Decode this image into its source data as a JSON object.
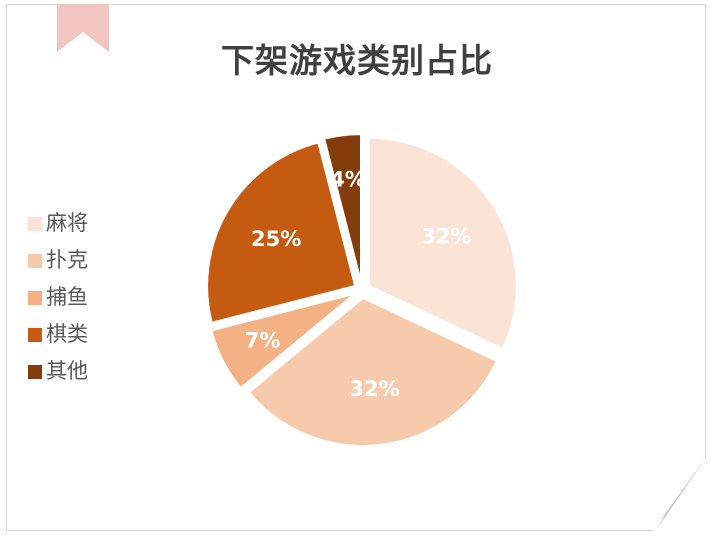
{
  "chart_data": {
    "type": "pie",
    "title": "下架游戏类别占比",
    "categories": [
      "麻将",
      "扑克",
      "捕鱼",
      "棋类",
      "其他"
    ],
    "values": [
      32,
      32,
      7,
      25,
      4
    ],
    "labels": [
      "32%",
      "32%",
      "7%",
      "25%",
      "4%"
    ],
    "colors": [
      "#FBE4D5",
      "#F7CAAC",
      "#F4B183",
      "#C55A11",
      "#843C0C"
    ],
    "legend_position": "left",
    "exploded": true
  },
  "legend": {
    "items": [
      {
        "label": "麻将",
        "color": "#FBE4D5"
      },
      {
        "label": "扑克",
        "color": "#F7CAAC"
      },
      {
        "label": "捕鱼",
        "color": "#F4B183"
      },
      {
        "label": "棋类",
        "color": "#C55A11"
      },
      {
        "label": "其他",
        "color": "#843C0C"
      }
    ]
  }
}
